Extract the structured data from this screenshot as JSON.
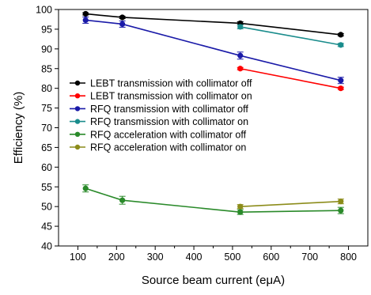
{
  "chart_data": {
    "type": "line",
    "title": "",
    "xlabel": "Source beam current (eμA)",
    "ylabel": "Efficiency (%)",
    "xlim": [
      50,
      850
    ],
    "ylim": [
      40,
      100
    ],
    "x_ticks": [
      100,
      200,
      300,
      400,
      500,
      600,
      700,
      800
    ],
    "y_ticks": [
      40,
      45,
      50,
      55,
      60,
      65,
      70,
      75,
      80,
      85,
      90,
      95,
      100
    ],
    "grid": false,
    "legend_position": "center-left",
    "error_bars": true,
    "series": [
      {
        "name": "LEBT transmission with collimator off",
        "color": "#000000",
        "x": [
          120,
          215,
          520,
          780
        ],
        "y": [
          98.9,
          98.0,
          96.5,
          93.6
        ],
        "err": [
          0.3,
          0.3,
          0.4,
          0.3
        ]
      },
      {
        "name": "LEBT transmission with collimator on",
        "color": "#ff0000",
        "x": [
          520,
          780
        ],
        "y": [
          85.0,
          80.0
        ],
        "err": [
          0.3,
          0.3
        ]
      },
      {
        "name": "RFQ transmission with collimator off",
        "color": "#1a1aa8",
        "x": [
          120,
          215,
          520,
          780
        ],
        "y": [
          97.3,
          96.3,
          88.3,
          82.0
        ],
        "err": [
          0.8,
          0.8,
          0.9,
          0.8
        ]
      },
      {
        "name": "RFQ transmission with collimator on",
        "color": "#1a8c8c",
        "x": [
          520,
          780
        ],
        "y": [
          95.6,
          91.0
        ],
        "err": [
          0.5,
          0.4
        ]
      },
      {
        "name": "RFQ acceleration with collimator off",
        "color": "#2a8a2a",
        "x": [
          120,
          215,
          520,
          780
        ],
        "y": [
          54.6,
          51.6,
          48.6,
          49.0
        ],
        "err": [
          0.9,
          1.0,
          0.6,
          0.8
        ]
      },
      {
        "name": "RFQ acceleration with collimator on",
        "color": "#8c8c1a",
        "x": [
          520,
          780
        ],
        "y": [
          50.0,
          51.3
        ],
        "err": [
          0.5,
          0.6
        ]
      }
    ]
  }
}
